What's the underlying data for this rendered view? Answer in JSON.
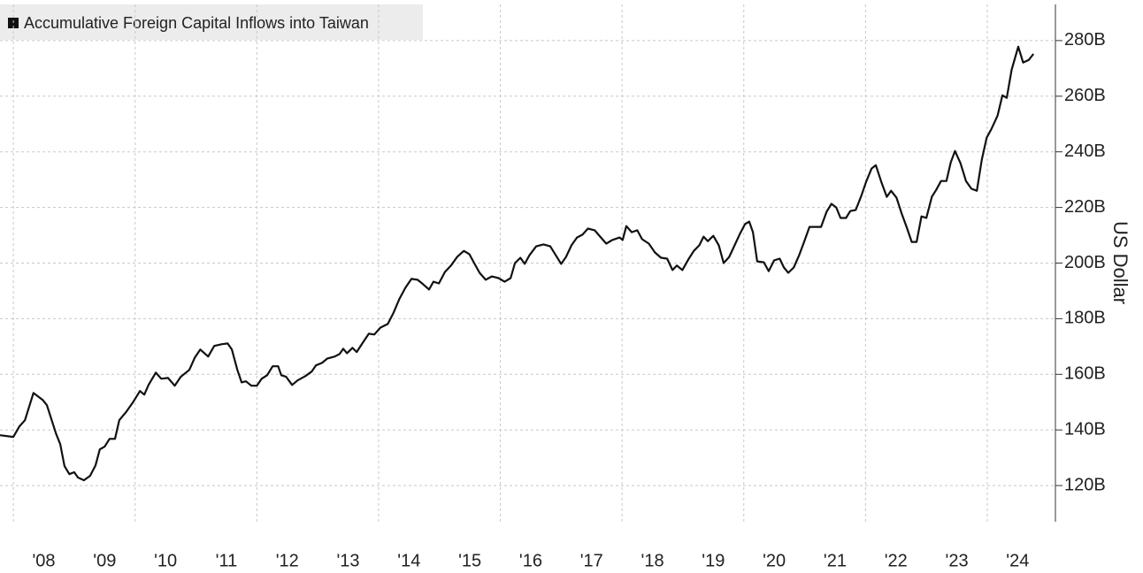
{
  "chart_data": {
    "type": "line",
    "y_label": "US Dollar",
    "x": [
      2007.78,
      2008.0,
      2008.1,
      2008.19,
      2008.33,
      2008.48,
      2008.55,
      2008.7,
      2008.77,
      2008.84,
      2008.92,
      2009.0,
      2009.06,
      2009.16,
      2009.26,
      2009.35,
      2009.42,
      2009.5,
      2009.58,
      2009.67,
      2009.74,
      2009.85,
      2009.96,
      2010.08,
      2010.15,
      2010.22,
      2010.34,
      2010.43,
      2010.54,
      2010.65,
      2010.75,
      2010.89,
      2010.98,
      2011.07,
      2011.2,
      2011.3,
      2011.42,
      2011.52,
      2011.59,
      2011.68,
      2011.75,
      2011.82,
      2011.91,
      2012.0,
      2012.08,
      2012.17,
      2012.26,
      2012.35,
      2012.4,
      2012.48,
      2012.58,
      2012.67,
      2012.8,
      2012.9,
      2012.97,
      2013.07,
      2013.16,
      2013.28,
      2013.36,
      2013.42,
      2013.48,
      2013.57,
      2013.64,
      2013.74,
      2013.84,
      2013.93,
      2014.03,
      2014.15,
      2014.24,
      2014.34,
      2014.44,
      2014.54,
      2014.64,
      2014.73,
      2014.83,
      2014.9,
      2014.99,
      2015.09,
      2015.19,
      2015.29,
      2015.4,
      2015.49,
      2015.57,
      2015.66,
      2015.76,
      2015.86,
      2015.97,
      2016.07,
      2016.17,
      2016.24,
      2016.33,
      2016.4,
      2016.48,
      2016.59,
      2016.71,
      2016.82,
      2016.91,
      2017.0,
      2017.08,
      2017.17,
      2017.26,
      2017.35,
      2017.44,
      2017.55,
      2017.64,
      2017.74,
      2017.84,
      2017.96,
      2018.01,
      2018.07,
      2018.16,
      2018.25,
      2018.33,
      2018.44,
      2018.54,
      2018.64,
      2018.74,
      2018.83,
      2018.9,
      2018.99,
      2019.09,
      2019.18,
      2019.27,
      2019.34,
      2019.41,
      2019.5,
      2019.59,
      2019.67,
      2019.76,
      2019.85,
      2019.93,
      2020.02,
      2020.09,
      2020.15,
      2020.22,
      2020.33,
      2020.41,
      2020.5,
      2020.59,
      2020.66,
      2020.73,
      2020.82,
      2020.91,
      2020.99,
      2021.08,
      2021.18,
      2021.27,
      2021.36,
      2021.44,
      2021.52,
      2021.59,
      2021.68,
      2021.75,
      2021.84,
      2021.93,
      2022.01,
      2022.1,
      2022.17,
      2022.26,
      2022.35,
      2022.42,
      2022.51,
      2022.59,
      2022.68,
      2022.76,
      2022.84,
      2022.92,
      2023.0,
      2023.09,
      2023.16,
      2023.24,
      2023.33,
      2023.4,
      2023.47,
      2023.56,
      2023.65,
      2023.74,
      2023.83,
      2023.91,
      2023.99,
      2024.07,
      2024.17,
      2024.25,
      2024.32,
      2024.4,
      2024.51,
      2024.59,
      2024.68,
      2024.76
    ],
    "series": [
      {
        "name": "Accumulative Foreign Capital Inflows into Taiwan",
        "color": "#111111",
        "values": [
          138.1,
          137.5,
          141.3,
          143.5,
          153.3,
          150.8,
          148.9,
          138.7,
          134.9,
          127.0,
          124.1,
          124.8,
          122.9,
          121.9,
          123.5,
          127.3,
          133.0,
          134.0,
          136.8,
          136.8,
          143.5,
          146.4,
          149.8,
          154.0,
          152.7,
          156.2,
          160.6,
          158.4,
          158.7,
          155.9,
          159.1,
          161.6,
          166.0,
          168.9,
          166.4,
          170.2,
          170.8,
          171.1,
          168.9,
          161.6,
          157.1,
          157.5,
          155.9,
          155.9,
          158.4,
          159.7,
          162.9,
          162.9,
          159.7,
          159.1,
          156.2,
          157.8,
          159.4,
          161.0,
          163.2,
          164.1,
          165.7,
          166.4,
          167.3,
          169.2,
          167.6,
          169.5,
          168.0,
          171.4,
          174.6,
          174.3,
          176.8,
          178.1,
          181.9,
          187.0,
          191.1,
          194.3,
          194.0,
          192.4,
          190.5,
          193.3,
          192.7,
          196.8,
          199.1,
          202.2,
          204.4,
          203.2,
          200.0,
          196.5,
          194.0,
          195.2,
          194.6,
          193.3,
          194.6,
          200.0,
          201.9,
          199.7,
          202.9,
          206.0,
          206.7,
          206.0,
          202.9,
          199.7,
          202.2,
          206.4,
          209.2,
          210.2,
          212.4,
          211.8,
          209.5,
          207.0,
          208.3,
          209.2,
          208.3,
          213.3,
          211.1,
          211.8,
          208.6,
          207.0,
          203.8,
          201.9,
          201.6,
          197.5,
          199.1,
          197.5,
          201.3,
          204.4,
          206.4,
          209.5,
          207.9,
          209.8,
          206.4,
          200.0,
          202.2,
          206.4,
          210.2,
          214.0,
          214.9,
          211.1,
          200.6,
          200.3,
          197.1,
          201.0,
          201.6,
          198.4,
          196.5,
          198.4,
          202.9,
          207.6,
          213.0,
          213.0,
          213.0,
          218.4,
          221.3,
          220.0,
          216.2,
          216.2,
          218.7,
          219.1,
          224.1,
          229.2,
          234.0,
          235.2,
          229.2,
          223.8,
          226.0,
          223.5,
          218.1,
          212.7,
          207.6,
          207.6,
          216.8,
          216.2,
          223.8,
          226.3,
          229.5,
          229.5,
          236.2,
          240.3,
          235.9,
          229.5,
          226.7,
          226.0,
          237.2,
          245.1,
          248.3,
          253.0,
          260.3,
          259.4,
          269.5,
          277.8,
          272.1,
          273.0,
          275.2
        ]
      }
    ],
    "xlim": [
      2007.78,
      2025.12
    ],
    "xticks": [
      {
        "value": 2008.5,
        "label": "'08"
      },
      {
        "value": 2009.5,
        "label": "'09"
      },
      {
        "value": 2010.5,
        "label": "'10"
      },
      {
        "value": 2011.5,
        "label": "'11"
      },
      {
        "value": 2012.5,
        "label": "'12"
      },
      {
        "value": 2013.5,
        "label": "'13"
      },
      {
        "value": 2014.5,
        "label": "'14"
      },
      {
        "value": 2015.5,
        "label": "'15"
      },
      {
        "value": 2016.5,
        "label": "'16"
      },
      {
        "value": 2017.5,
        "label": "'17"
      },
      {
        "value": 2018.5,
        "label": "'18"
      },
      {
        "value": 2019.5,
        "label": "'19"
      },
      {
        "value": 2020.5,
        "label": "'20"
      },
      {
        "value": 2021.5,
        "label": "'21"
      },
      {
        "value": 2022.5,
        "label": "'22"
      },
      {
        "value": 2023.5,
        "label": "'23"
      },
      {
        "value": 2024.5,
        "label": "'24"
      }
    ],
    "xgrid": [
      2008,
      2010,
      2012,
      2014,
      2016,
      2018,
      2020,
      2022,
      2024
    ],
    "ylim": [
      107,
      293
    ],
    "yticks": [
      {
        "value": 120,
        "label": "120B"
      },
      {
        "value": 140,
        "label": "140B"
      },
      {
        "value": 160,
        "label": "160B"
      },
      {
        "value": 180,
        "label": "180B"
      },
      {
        "value": 200,
        "label": "200B"
      },
      {
        "value": 220,
        "label": "220B"
      },
      {
        "value": 240,
        "label": "240B"
      },
      {
        "value": 260,
        "label": "260B"
      },
      {
        "value": 280,
        "label": "280B"
      }
    ],
    "grid": true
  }
}
